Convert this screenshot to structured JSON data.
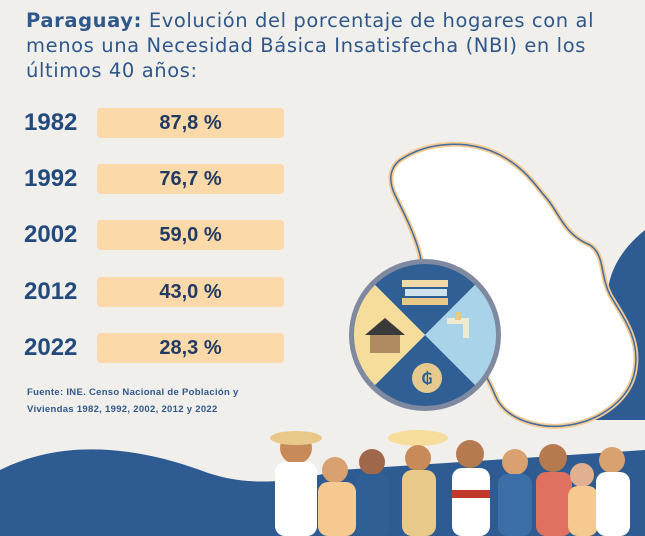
{
  "header": {
    "title_bold": "Paraguay:",
    "title_rest": " Evolución del porcentaje de hogares con al menos una Necesidad Básica Insatisfecha (NBI) en los últimos 40 años:"
  },
  "rows": [
    {
      "year": "1982",
      "value": "87,8 %"
    },
    {
      "year": "1992",
      "value": "76,7 %"
    },
    {
      "year": "2002",
      "value": "59,0 %"
    },
    {
      "year": "2012",
      "value": "43,0 %"
    },
    {
      "year": "2022",
      "value": "28,3 %"
    }
  ],
  "source": {
    "line1": "Fuente:  INE. Censo Nacional de Población y",
    "line2": "Viviendas 1982, 1992, 2002, 2012 y 2022"
  },
  "colors": {
    "background": "#f1efec",
    "title": "#2f5789",
    "pill": "#fcd9a8",
    "wave": "#2e5b91"
  }
}
